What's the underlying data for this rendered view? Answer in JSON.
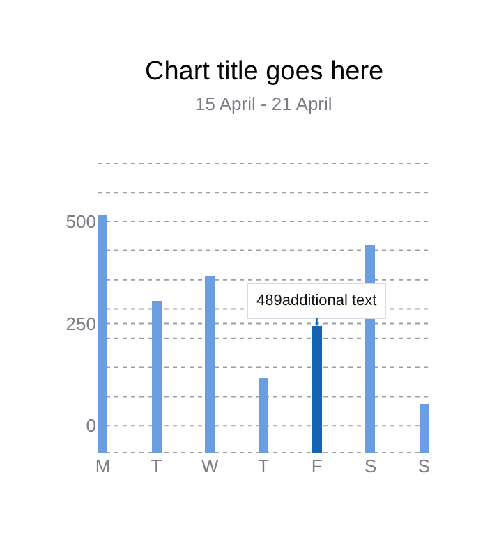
{
  "chart_data": {
    "type": "bar",
    "title": "Chart title goes here",
    "subtitle": "15 April - 21 April",
    "categories": [
      "M",
      "T",
      "W",
      "T",
      "F",
      "S",
      "S"
    ],
    "values": [
      582,
      372,
      434,
      185,
      311,
      508,
      120
    ],
    "base": [
      -66,
      -66,
      -66,
      -66,
      -66,
      -66,
      -66
    ],
    "colors": [
      "#6b9de3",
      "#6b9de3",
      "#6b9de3",
      "#6b9de3",
      "#1464b4",
      "#6b9de3",
      "#6b9de3"
    ],
    "ylim": [
      -66,
      643
    ],
    "yticks": [
      {
        "value": -66,
        "label": null
      },
      0,
      {
        "value": 71,
        "label": null
      },
      {
        "value": 143,
        "label": null
      },
      {
        "value": 214,
        "label": null
      },
      250,
      {
        "value": 286,
        "label": null
      },
      {
        "value": 357,
        "label": null
      },
      {
        "value": 429,
        "label": null
      },
      500,
      {
        "value": 571,
        "label": null
      },
      {
        "value": 643,
        "label": null
      }
    ],
    "grid": "y",
    "annotations": [
      {
        "text": "489additional text",
        "x": "F",
        "y": 245
      }
    ]
  }
}
